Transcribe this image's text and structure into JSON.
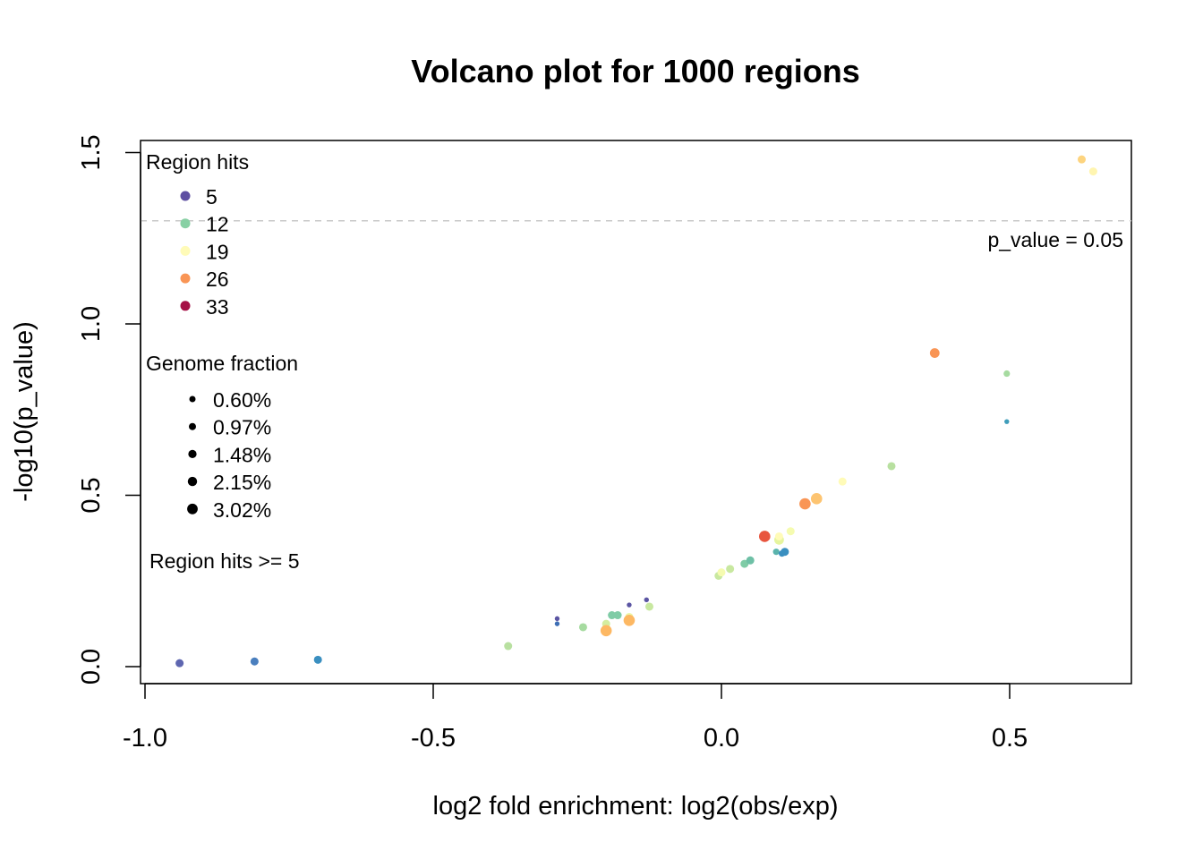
{
  "chart_data": {
    "type": "scatter",
    "title": "Volcano plot for 1000 regions",
    "xlabel": "log2 fold enrichment: log2(obs/exp)",
    "ylabel": "-log10(p_value)",
    "xlim": [
      -1.0,
      0.7
    ],
    "ylim": [
      -0.05,
      1.55
    ],
    "x_ticks": [
      -1.0,
      -0.5,
      0.0,
      0.5
    ],
    "x_tick_labels": [
      "-1.0",
      "-0.5",
      "0.0",
      "0.5"
    ],
    "y_ticks": [
      0.0,
      0.5,
      1.0,
      1.5
    ],
    "y_tick_labels": [
      "0.0",
      "0.5",
      "1.0",
      "1.5"
    ],
    "grid": false,
    "threshold": {
      "y": 1.301,
      "label": "p_value = 0.05",
      "color": "#c8c8c8",
      "style": "dashed"
    },
    "note": "Region hits >= 5",
    "legend_hits": {
      "title": "Region hits",
      "entries": [
        {
          "label": "5",
          "color": "#5e4fa2"
        },
        {
          "label": "12",
          "color": "#88d0a4"
        },
        {
          "label": "19",
          "color": "#fffbb8"
        },
        {
          "label": "26",
          "color": "#f99555"
        },
        {
          "label": "33",
          "color": "#a50f45"
        }
      ]
    },
    "legend_fraction": {
      "title": "Genome fraction",
      "entries": [
        {
          "label": "0.60%",
          "value": 0.6
        },
        {
          "label": "0.97%",
          "value": 0.97
        },
        {
          "label": "1.48%",
          "value": 1.48
        },
        {
          "label": "2.15%",
          "value": 2.15
        },
        {
          "label": "3.02%",
          "value": 3.02
        }
      ]
    },
    "points": [
      {
        "x": -0.94,
        "y": 0.01,
        "color": "#5e66b0",
        "size": 1.0
      },
      {
        "x": -0.81,
        "y": 0.015,
        "color": "#4a7fbe",
        "size": 1.0
      },
      {
        "x": -0.7,
        "y": 0.02,
        "color": "#3a8fc0",
        "size": 1.0
      },
      {
        "x": -0.37,
        "y": 0.06,
        "color": "#b8e0a0",
        "size": 1.0
      },
      {
        "x": -0.285,
        "y": 0.14,
        "color": "#5b55a3",
        "size": 0.6
      },
      {
        "x": -0.285,
        "y": 0.125,
        "color": "#3e6fb5",
        "size": 0.6
      },
      {
        "x": -0.24,
        "y": 0.115,
        "color": "#a6dba0",
        "size": 1.0
      },
      {
        "x": -0.2,
        "y": 0.125,
        "color": "#d4eda0",
        "size": 1.0
      },
      {
        "x": -0.2,
        "y": 0.105,
        "color": "#fdb863",
        "size": 1.4
      },
      {
        "x": -0.19,
        "y": 0.15,
        "color": "#7fcca6",
        "size": 1.0
      },
      {
        "x": -0.18,
        "y": 0.15,
        "color": "#7fcca6",
        "size": 1.0
      },
      {
        "x": -0.16,
        "y": 0.145,
        "color": "#ecf7a8",
        "size": 1.0
      },
      {
        "x": -0.16,
        "y": 0.135,
        "color": "#fdb863",
        "size": 1.4
      },
      {
        "x": -0.16,
        "y": 0.18,
        "color": "#5b55a3",
        "size": 0.6
      },
      {
        "x": -0.13,
        "y": 0.195,
        "color": "#5b55a3",
        "size": 0.6
      },
      {
        "x": -0.125,
        "y": 0.175,
        "color": "#c8e8a0",
        "size": 1.0
      },
      {
        "x": -0.005,
        "y": 0.265,
        "color": "#c8e8a0",
        "size": 1.0
      },
      {
        "x": 0.0,
        "y": 0.275,
        "color": "#f5fbb0",
        "size": 1.0
      },
      {
        "x": 0.015,
        "y": 0.285,
        "color": "#c8e8a0",
        "size": 1.0
      },
      {
        "x": 0.04,
        "y": 0.3,
        "color": "#7fcca6",
        "size": 1.0
      },
      {
        "x": 0.05,
        "y": 0.31,
        "color": "#6ec0a6",
        "size": 1.0
      },
      {
        "x": 0.075,
        "y": 0.38,
        "color": "#e8553e",
        "size": 1.4
      },
      {
        "x": 0.095,
        "y": 0.335,
        "color": "#5ab3ac",
        "size": 0.8
      },
      {
        "x": 0.1,
        "y": 0.37,
        "color": "#e6f59e",
        "size": 1.2
      },
      {
        "x": 0.1,
        "y": 0.38,
        "color": "#fffbb8",
        "size": 1.0
      },
      {
        "x": 0.105,
        "y": 0.33,
        "color": "#3a8fc0",
        "size": 0.8
      },
      {
        "x": 0.11,
        "y": 0.335,
        "color": "#3a8fc0",
        "size": 1.0
      },
      {
        "x": 0.12,
        "y": 0.395,
        "color": "#f5fbb0",
        "size": 1.0
      },
      {
        "x": 0.145,
        "y": 0.475,
        "color": "#f99555",
        "size": 1.4
      },
      {
        "x": 0.165,
        "y": 0.49,
        "color": "#fdc471",
        "size": 1.4
      },
      {
        "x": 0.21,
        "y": 0.54,
        "color": "#fffbb8",
        "size": 1.0
      },
      {
        "x": 0.295,
        "y": 0.585,
        "color": "#b8e0a0",
        "size": 1.0
      },
      {
        "x": 0.37,
        "y": 0.915,
        "color": "#f99555",
        "size": 1.2
      },
      {
        "x": 0.495,
        "y": 0.855,
        "color": "#a6dba0",
        "size": 0.8
      },
      {
        "x": 0.495,
        "y": 0.715,
        "color": "#3f9dba",
        "size": 0.6
      },
      {
        "x": 0.625,
        "y": 1.48,
        "color": "#fdd47f",
        "size": 1.0
      },
      {
        "x": 0.645,
        "y": 1.445,
        "color": "#fff5b0",
        "size": 1.0
      }
    ]
  }
}
